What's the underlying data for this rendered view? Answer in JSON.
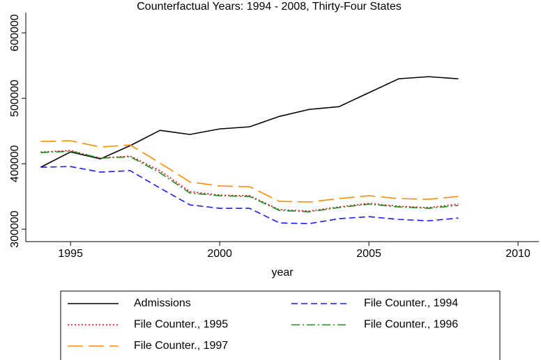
{
  "chart_data": {
    "type": "line",
    "title": "Counterfactual Years: 1994 - 2008, Thirty-Four States",
    "x_label": "year",
    "x": [
      1994,
      1995,
      1996,
      1997,
      1998,
      1999,
      2000,
      2001,
      2002,
      2003,
      2004,
      2005,
      2006,
      2007,
      2008
    ],
    "series": [
      {
        "name": "Admissions",
        "color": "#000000",
        "style": "solid",
        "values": [
          394700,
          418000,
          407400,
          427700,
          451000,
          444700,
          453200,
          456400,
          472300,
          483000,
          487200,
          508500,
          529800,
          533000,
          529800
        ]
      },
      {
        "name": "File Counter., 1994",
        "color": "#1a1aff",
        "style": "dash",
        "values": [
          394700,
          395700,
          387200,
          389400,
          362800,
          337200,
          331900,
          331900,
          309600,
          308500,
          316000,
          319100,
          314900,
          312800,
          317000
        ]
      },
      {
        "name": "File Counter., 1995",
        "color": "#e8000b",
        "style": "dot",
        "values": [
          418000,
          420200,
          408500,
          411700,
          389400,
          357400,
          352100,
          351100,
          329800,
          327700,
          334000,
          339400,
          335100,
          333000,
          338300
        ]
      },
      {
        "name": "File Counter., 1996",
        "color": "#1a8c1a",
        "style": "dashdot",
        "values": [
          417000,
          419100,
          408500,
          410600,
          386200,
          355300,
          351100,
          350000,
          328700,
          326600,
          333000,
          338300,
          334000,
          331900,
          336200
        ]
      },
      {
        "name": "File Counter., 1997",
        "color": "#ff8c00",
        "style": "longdash",
        "values": [
          434000,
          435100,
          425500,
          428700,
          401100,
          372300,
          366000,
          364900,
          342600,
          341500,
          346800,
          351100,
          346800,
          345700,
          350000
        ]
      }
    ],
    "xlim": [
      1993.5,
      2010.7
    ],
    "xticks": [
      1995,
      2000,
      2005,
      2010
    ],
    "ylim": [
      281000,
      631000
    ],
    "yticks": [
      300000,
      400000,
      500000,
      600000
    ],
    "legend": "bottom"
  }
}
